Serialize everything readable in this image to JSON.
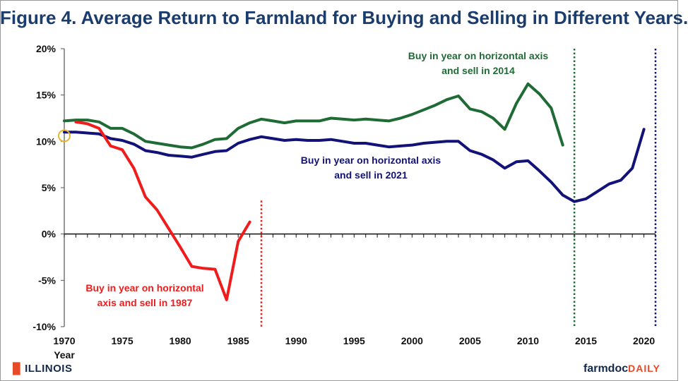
{
  "title": "Figure 4.  Average Return to Farmland for Buying and Selling in Different Years.",
  "logos": {
    "left": "ILLINOIS",
    "right_main": "farmdoc",
    "right_accent": "DAILY"
  },
  "colors": {
    "green": "#1e6b35",
    "navy": "#121278",
    "red": "#f01c1c",
    "highlight": "#e9b52d"
  },
  "chart_data": {
    "type": "line",
    "title": "Figure 4.  Average Return to Farmland for Buying and Selling in Different Years.",
    "xlabel": "Year",
    "ylabel": "",
    "xlim": [
      1970,
      2021
    ],
    "ylim": [
      -10,
      20
    ],
    "x_ticks": [
      1970,
      1975,
      1980,
      1985,
      1990,
      1995,
      2000,
      2005,
      2010,
      2015,
      2020
    ],
    "y_ticks": [
      -10,
      -5,
      0,
      5,
      10,
      15,
      20
    ],
    "y_tick_labels": [
      "-10%",
      "-5%",
      "0%",
      "5%",
      "10%",
      "15%",
      "20%"
    ],
    "grid": false,
    "series": [
      {
        "name": "Buy in year on horizontal axis and sell in 2014",
        "color": "#1e6b35",
        "x": [
          1970,
          1971,
          1972,
          1973,
          1974,
          1975,
          1976,
          1977,
          1978,
          1979,
          1980,
          1981,
          1982,
          1983,
          1984,
          1985,
          1986,
          1987,
          1988,
          1989,
          1990,
          1991,
          1992,
          1993,
          1994,
          1995,
          1996,
          1997,
          1998,
          1999,
          2000,
          2001,
          2002,
          2003,
          2004,
          2005,
          2006,
          2007,
          2008,
          2009,
          2010,
          2011,
          2012,
          2013
        ],
        "values": [
          12.2,
          12.3,
          12.3,
          12.1,
          11.4,
          11.4,
          10.8,
          10.0,
          9.8,
          9.6,
          9.4,
          9.3,
          9.7,
          10.2,
          10.3,
          11.4,
          12.0,
          12.4,
          12.2,
          12.0,
          12.2,
          12.2,
          12.2,
          12.5,
          12.4,
          12.3,
          12.4,
          12.3,
          12.2,
          12.5,
          12.9,
          13.4,
          13.9,
          14.5,
          14.9,
          13.5,
          13.2,
          12.5,
          11.3,
          14.1,
          16.2,
          15.1,
          13.6,
          9.6
        ]
      },
      {
        "name": "Buy in year on horizontal axis and sell in 2021",
        "color": "#121278",
        "x": [
          1970,
          1971,
          1972,
          1973,
          1974,
          1975,
          1976,
          1977,
          1978,
          1979,
          1980,
          1981,
          1982,
          1983,
          1984,
          1985,
          1986,
          1987,
          1988,
          1989,
          1990,
          1991,
          1992,
          1993,
          1994,
          1995,
          1996,
          1997,
          1998,
          1999,
          2000,
          2001,
          2002,
          2003,
          2004,
          2005,
          2006,
          2007,
          2008,
          2009,
          2010,
          2011,
          2012,
          2013,
          2014,
          2015,
          2016,
          2017,
          2018,
          2019,
          2020
        ],
        "values": [
          11.0,
          11.0,
          10.9,
          10.8,
          10.3,
          10.1,
          9.7,
          9.0,
          8.8,
          8.5,
          8.4,
          8.3,
          8.6,
          8.9,
          9.0,
          9.8,
          10.2,
          10.5,
          10.3,
          10.1,
          10.2,
          10.1,
          10.1,
          10.2,
          10.0,
          9.8,
          9.8,
          9.6,
          9.4,
          9.5,
          9.6,
          9.8,
          9.9,
          10.0,
          10.0,
          9.0,
          8.6,
          8.0,
          7.1,
          7.8,
          7.9,
          6.8,
          5.6,
          4.2,
          3.5,
          3.8,
          4.6,
          5.4,
          5.8,
          7.1,
          11.3
        ]
      },
      {
        "name": "Buy in year on horizontal axis and sell in 1987",
        "color": "#f01c1c",
        "x": [
          1971,
          1972,
          1973,
          1974,
          1975,
          1976,
          1977,
          1978,
          1979,
          1980,
          1981,
          1982,
          1983,
          1984,
          1985,
          1986
        ],
        "values": [
          12.1,
          11.9,
          11.4,
          9.5,
          9.1,
          7.1,
          4.0,
          2.6,
          0.6,
          -1.4,
          -3.5,
          -3.7,
          -3.8,
          -7.1,
          -0.8,
          1.3
        ]
      }
    ],
    "vertical_markers": [
      {
        "x": 1987,
        "color": "#f01c1c",
        "ymin": -10,
        "ymax": 3.6
      },
      {
        "x": 2014,
        "color": "#1e6b35",
        "ymin": -10,
        "ymax": 20
      },
      {
        "x": 2021,
        "color": "#121278",
        "ymin": -10,
        "ymax": 20
      }
    ],
    "highlight_point": {
      "x": 1970,
      "y": 10.6
    },
    "annotations": [
      {
        "lines": [
          "Buy in year on horizontal axis",
          "and sell in 2014"
        ],
        "color": "#1e6b35"
      },
      {
        "lines": [
          "Buy in year on horizontal axis",
          "and sell in 2021"
        ],
        "color": "#121278"
      },
      {
        "lines": [
          "Buy in year on horizontal",
          "axis and sell in 1987"
        ],
        "color": "#f01c1c"
      }
    ]
  }
}
